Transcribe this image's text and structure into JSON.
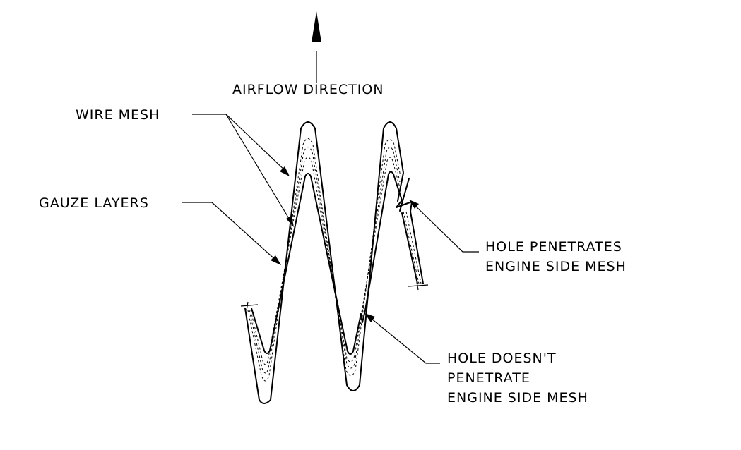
{
  "labels": {
    "airflow": "AIRFLOW DIRECTION",
    "wire_mesh": "WIRE MESH",
    "gauze_layers": "GAUZE LAYERS",
    "hole_penetrates_line1": "HOLE PENETRATES",
    "hole_penetrates_line2": "ENGINE SIDE MESH",
    "hole_doesnt_line1": "HOLE DOESN'T",
    "hole_doesnt_line2": "PENETRATE",
    "hole_doesnt_line3": "ENGINE SIDE MESH"
  },
  "colors": {
    "ink": "#000000",
    "background": "#ffffff"
  }
}
